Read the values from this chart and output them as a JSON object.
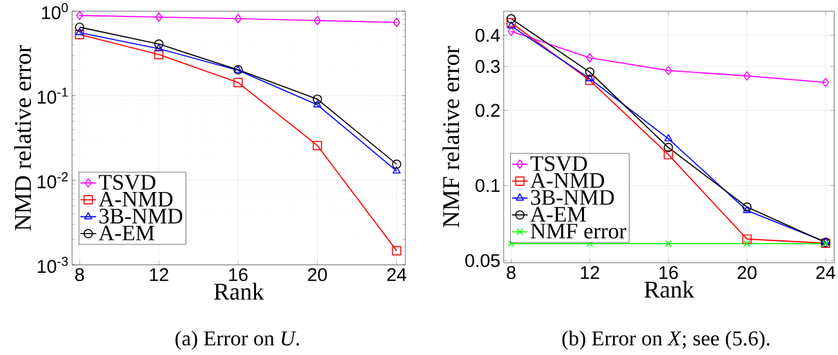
{
  "chart_data": [
    {
      "type": "line",
      "xlabel": "Rank",
      "ylabel": "NMD relative error",
      "log": true,
      "grid": true,
      "legend": "bottom left",
      "x": [
        8,
        12,
        16,
        20,
        24
      ],
      "xlim": [
        7.62,
        24.44
      ],
      "xticks": [
        8,
        12,
        16,
        20,
        24
      ],
      "ylim": [
        0.001,
        1
      ],
      "yticks": [
        {
          "value": 0.001,
          "label": "10$^{-3}$"
        },
        {
          "value": 0.01,
          "label": "10$^{-2}$"
        },
        {
          "value": 0.1,
          "label": "10$^{-1}$"
        },
        {
          "value": 1,
          "label": "10$^{0}$"
        }
      ],
      "annotations": [
        "(a) Error on *U*."
      ],
      "series": [
        {
          "name": "TSVD",
          "color": "#ff00ff",
          "marker": "diamond",
          "values": [
            0.89,
            0.85,
            0.815,
            0.775,
            0.736
          ]
        },
        {
          "name": "A-NMD",
          "color": "#ff0000",
          "marker": "square",
          "values": [
            0.53,
            0.307,
            0.143,
            0.0258,
            0.00147
          ]
        },
        {
          "name": "3B-NMD",
          "color": "#0000ff",
          "marker": "triangle",
          "values": [
            0.558,
            0.36,
            0.2,
            0.078,
            0.0129
          ]
        },
        {
          "name": "A-EM",
          "color": "#000000",
          "marker": "circle",
          "values": [
            0.646,
            0.408,
            0.203,
            0.091,
            0.0155
          ]
        }
      ]
    },
    {
      "type": "line",
      "xlabel": "Rank",
      "ylabel": "NMF relative error",
      "log": true,
      "grid": true,
      "legend": "bottom left",
      "x": [
        8,
        12,
        16,
        20,
        24
      ],
      "xlim": [
        7.62,
        24.44
      ],
      "xticks": [
        8,
        12,
        16,
        20,
        24
      ],
      "ylim": [
        0.049,
        0.5
      ],
      "yticks": [
        0.05,
        0.1,
        0.2,
        0.3,
        0.4
      ],
      "annotations": [
        "(b) Error on *X*; see (5.6)."
      ],
      "series": [
        {
          "name": "TSVD",
          "color": "#ff00ff",
          "marker": "diamond",
          "values": [
            0.415,
            0.325,
            0.289,
            0.275,
            0.259
          ]
        },
        {
          "name": "A-NMD",
          "color": "#ff0000",
          "marker": "square",
          "values": [
            0.449,
            0.264,
            0.133,
            0.061,
            0.0587
          ]
        },
        {
          "name": "3B-NMD",
          "color": "#0000ff",
          "marker": "triangle",
          "values": [
            0.436,
            0.268,
            0.154,
            0.0794,
            0.0594
          ]
        },
        {
          "name": "A-EM",
          "color": "#000000",
          "marker": "circle",
          "values": [
            0.466,
            0.285,
            0.142,
            0.082,
            0.0591
          ]
        },
        {
          "name": "NMF error",
          "color": "#00ff00",
          "marker": "cross",
          "values": [
            0.0585,
            0.0585,
            0.0585,
            0.0585,
            0.0585
          ]
        }
      ]
    }
  ]
}
